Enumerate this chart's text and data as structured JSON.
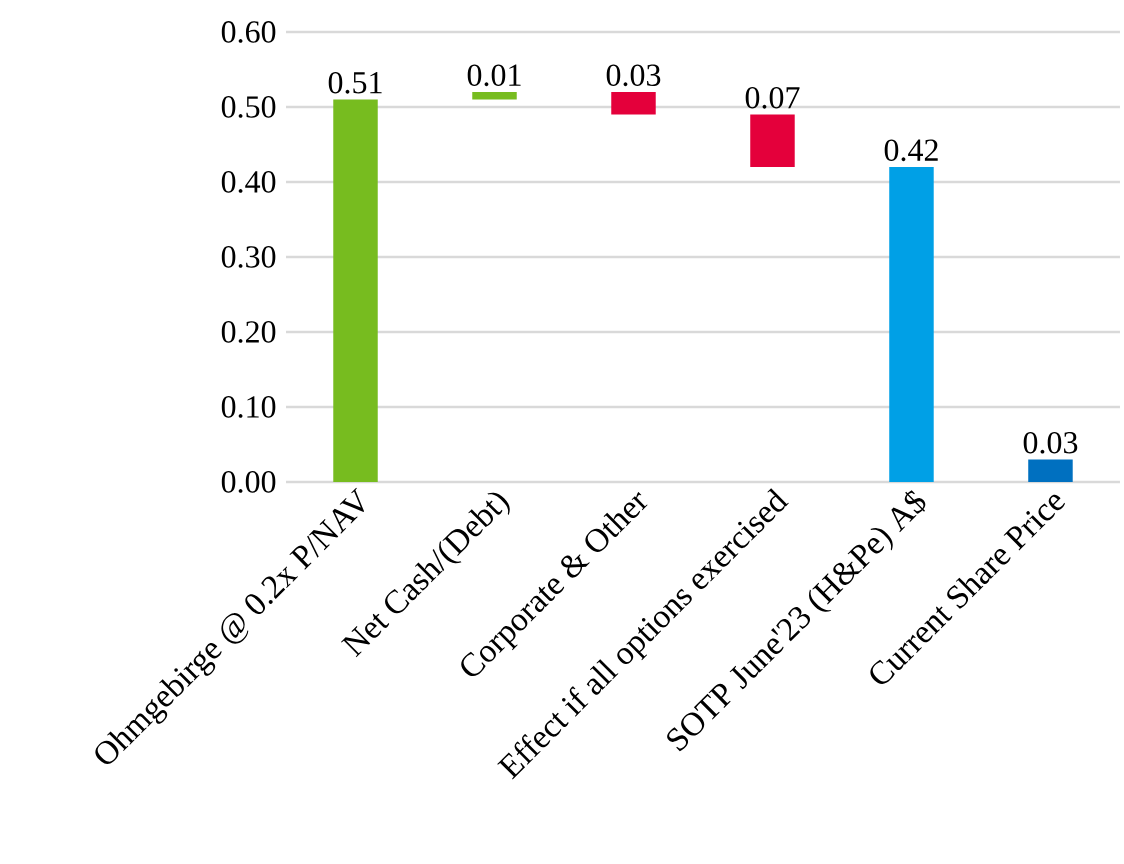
{
  "chart_data": {
    "type": "bar",
    "categories": [
      "Ohmgebirge @ 0.2x P/NAV",
      "Net Cash/(Debt)",
      "Corporate & Other",
      "Effect if all options exercised",
      "SOTP June'23 (H&Pe) A$",
      "Current Share Price"
    ],
    "values": [
      0.51,
      0.01,
      -0.03,
      -0.07,
      0.42,
      0.03
    ],
    "base": [
      0,
      0.51,
      0.52,
      0.49,
      0,
      0
    ],
    "colors": [
      "#77bc1f",
      "#77bc1f",
      "#e4003b",
      "#e4003b",
      "#00a0e6",
      "#0070c0"
    ],
    "value_labels": [
      "0.51",
      "0.01",
      "0.03",
      "0.07",
      "0.42",
      "0.03"
    ],
    "ylim": [
      0,
      0.6
    ],
    "yticks": [
      {
        "value": 0,
        "label": "0.00"
      },
      {
        "value": 0.1,
        "label": "0.10"
      },
      {
        "value": 0.2,
        "label": "0.20"
      },
      {
        "value": 0.3,
        "label": "0.30"
      },
      {
        "value": 0.4,
        "label": "0.40"
      },
      {
        "value": 0.5,
        "label": "0.50"
      },
      {
        "value": 0.6,
        "label": "0.60"
      }
    ],
    "grid": "y"
  }
}
